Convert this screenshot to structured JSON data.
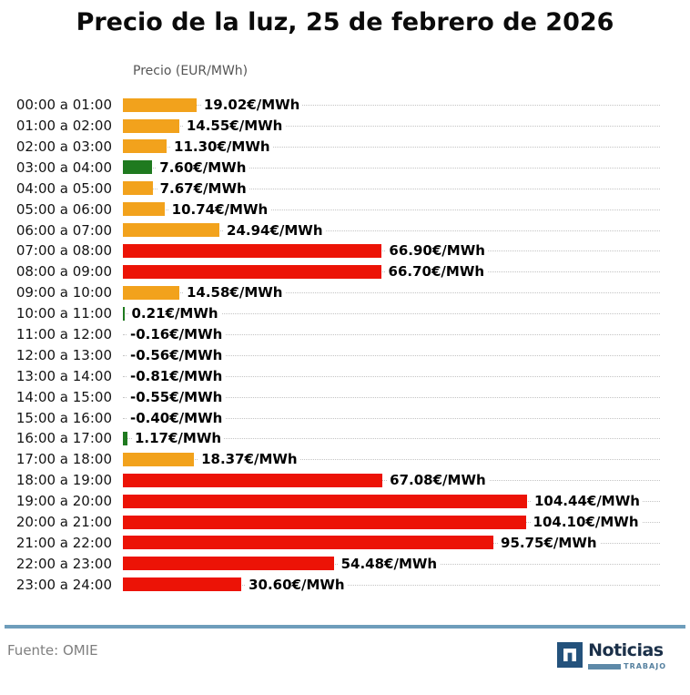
{
  "title": "Precio de la luz, 25 de febrero de 2026",
  "axis_label": "Precio (EUR/MWh)",
  "colors": {
    "orange": "#f2a21c",
    "green": "#1f7a1f",
    "red": "#ec1306",
    "grid": "#c4c4c4",
    "divider": "#6e9dbb",
    "logo_navy": "#24527c",
    "logo_text_navy": "#1b3049",
    "logo_steel": "#5d89a8"
  },
  "chart_data": {
    "type": "bar",
    "orientation": "horizontal",
    "title": "Precio de la luz, 25 de febrero de 2026",
    "xlabel": "Precio (EUR/MWh)",
    "xlim": [
      0,
      110
    ],
    "grid": "dotted-horizontal-row-leaders",
    "legend": "none",
    "categories": [
      "00:00 a 01:00",
      "01:00 a 02:00",
      "02:00 a 03:00",
      "03:00 a 04:00",
      "04:00 a 05:00",
      "05:00 a 06:00",
      "06:00 a 07:00",
      "07:00 a 08:00",
      "08:00 a 09:00",
      "09:00 a 10:00",
      "10:00 a 11:00",
      "11:00 a 12:00",
      "12:00 a 13:00",
      "13:00 a 14:00",
      "14:00 a 15:00",
      "15:00 a 16:00",
      "16:00 a 17:00",
      "17:00 a 18:00",
      "18:00 a 19:00",
      "19:00 a 20:00",
      "20:00 a 21:00",
      "21:00 a 22:00",
      "22:00 a 23:00",
      "23:00 a 24:00"
    ],
    "values": [
      19.02,
      14.55,
      11.3,
      7.6,
      7.67,
      10.74,
      24.94,
      66.9,
      66.7,
      14.58,
      0.21,
      -0.16,
      -0.56,
      -0.81,
      -0.55,
      -0.4,
      1.17,
      18.37,
      67.08,
      104.44,
      104.1,
      95.75,
      54.48,
      30.6
    ],
    "value_labels": [
      "19.02€/MWh",
      "14.55€/MWh",
      "11.30€/MWh",
      "7.60€/MWh",
      "7.67€/MWh",
      "10.74€/MWh",
      "24.94€/MWh",
      "66.90€/MWh",
      "66.70€/MWh",
      "14.58€/MWh",
      "0.21€/MWh",
      "-0.16€/MWh",
      "-0.56€/MWh",
      "-0.81€/MWh",
      "-0.55€/MWh",
      "-0.40€/MWh",
      "1.17€/MWh",
      "18.37€/MWh",
      "67.08€/MWh",
      "104.44€/MWh",
      "104.10€/MWh",
      "95.75€/MWh",
      "54.48€/MWh",
      "30.60€/MWh"
    ],
    "bar_colors": [
      "orange",
      "orange",
      "orange",
      "green",
      "orange",
      "orange",
      "orange",
      "red",
      "red",
      "orange",
      "green",
      "none",
      "none",
      "none",
      "none",
      "none",
      "green",
      "orange",
      "red",
      "red",
      "red",
      "red",
      "red",
      "red"
    ]
  },
  "footer": {
    "source": "Fuente: OMIE",
    "logo_name": "Noticias",
    "logo_sub": "TRABAJO"
  }
}
